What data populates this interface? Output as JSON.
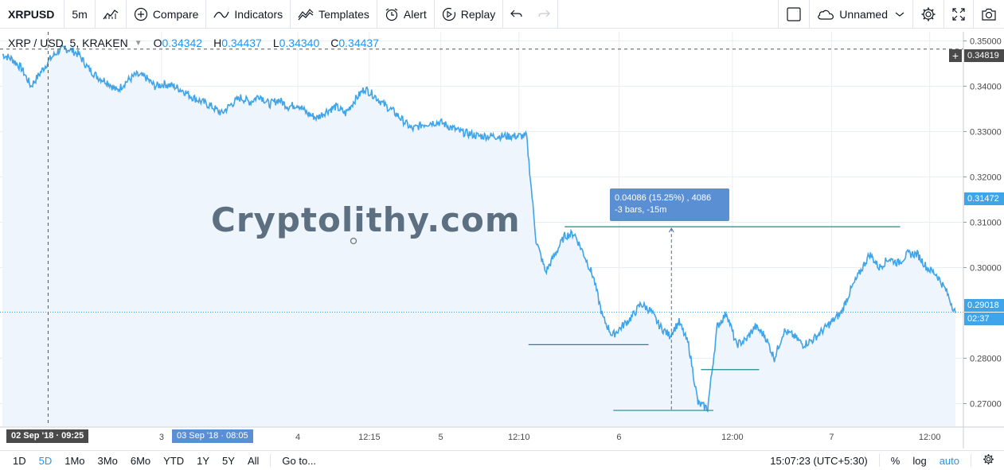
{
  "toolbar": {
    "symbol": "XRPUSD",
    "interval": "5m",
    "compare_label": "Compare",
    "indicators_label": "Indicators",
    "templates_label": "Templates",
    "alert_label": "Alert",
    "replay_label": "Replay",
    "layout_name": "Unnamed",
    "icons": [
      "bar-style-icon",
      "plus-circle-icon",
      "indicators-icon",
      "templates-icon",
      "alarm-clock-icon",
      "replay-icon",
      "undo-icon",
      "redo-icon",
      "square-icon",
      "cloud-icon",
      "chevron-down-icon",
      "gear-icon",
      "fullscreen-icon",
      "camera-icon"
    ]
  },
  "legend": {
    "title": "XRP / USD, 5, KRAKEN",
    "o_label": "O",
    "o_value": "0.34342",
    "h_label": "H",
    "h_value": "0.34437",
    "l_label": "L",
    "l_value": "0.34340",
    "c_label": "C",
    "c_value": "0.34437"
  },
  "watermark": "Cryptolithy.com",
  "measure": {
    "line1": "0.04086 (15.25%) , 4086",
    "line2": "-3 bars, -15m"
  },
  "price_axis": {
    "ticks": [
      "0.35000",
      "0.34000",
      "0.33000",
      "0.32000",
      "0.31000",
      "0.30000",
      "0.28000",
      "0.27000"
    ],
    "crosshair_price": "0.34819",
    "highlight_price": "0.31472",
    "last_price": "0.29018",
    "countdown": "02:37"
  },
  "time_axis": {
    "ticks": [
      "3",
      "4",
      "12:15",
      "5",
      "12:10",
      "6",
      "12:00",
      "7",
      "12:00"
    ],
    "crosshair_time": "02 Sep '18 · 09:25",
    "selected_time": "03 Sep '18 · 08:05"
  },
  "bottom": {
    "ranges": [
      "1D",
      "5D",
      "1Mo",
      "3Mo",
      "6Mo",
      "YTD",
      "1Y",
      "5Y",
      "All"
    ],
    "active_range": "5D",
    "goto_label": "Go to...",
    "clock": "15:07:23 (UTC+5:30)",
    "percent_label": "%",
    "log_label": "log",
    "auto_label": "auto"
  },
  "colors": {
    "line": "#3fa4e8",
    "area": "#eef5fc",
    "grid": "#e9eef3",
    "drawing": "#1f8a8a",
    "measure_bg": "#5a8fd3",
    "label_dark": "#4a4a4a"
  },
  "chart_data": {
    "type": "area",
    "title": "XRP / USD, 5, KRAKEN",
    "y_range": [
      0.265,
      0.352
    ],
    "x_range": [
      0,
      100
    ],
    "series": [
      {
        "x": [
          0,
          1,
          2,
          3,
          4,
          5,
          6,
          7,
          8,
          9,
          10,
          11,
          12,
          13,
          14,
          15,
          16,
          17,
          18,
          19,
          20,
          21,
          22,
          23,
          24,
          25,
          26,
          27,
          28,
          29,
          30,
          31,
          32,
          33,
          34,
          35,
          36,
          37,
          38,
          39,
          40,
          41,
          42,
          43,
          44,
          45,
          46,
          47,
          48,
          49,
          50,
          51,
          52,
          53,
          54,
          55,
          56,
          57,
          58,
          59,
          60,
          61,
          62,
          63,
          64,
          65,
          66,
          67,
          68,
          69,
          70,
          71,
          72,
          73,
          74,
          75,
          76,
          77,
          78,
          79,
          80,
          81,
          82,
          83,
          84,
          85,
          86,
          87,
          88,
          89,
          90,
          91,
          92,
          93,
          94,
          95,
          96,
          97,
          98,
          99,
          100
        ],
        "values": [
          0.347,
          0.346,
          0.344,
          0.34,
          0.343,
          0.346,
          0.348,
          0.3482,
          0.347,
          0.344,
          0.342,
          0.341,
          0.339,
          0.341,
          0.3425,
          0.342,
          0.34,
          0.3405,
          0.34,
          0.339,
          0.3375,
          0.3365,
          0.3355,
          0.334,
          0.336,
          0.3375,
          0.3365,
          0.338,
          0.336,
          0.337,
          0.3355,
          0.336,
          0.334,
          0.333,
          0.3345,
          0.3355,
          0.334,
          0.337,
          0.3395,
          0.338,
          0.336,
          0.3345,
          0.3325,
          0.3305,
          0.3315,
          0.332,
          0.332,
          0.331,
          0.33,
          0.3295,
          0.329,
          0.329,
          0.329,
          0.329,
          0.329,
          0.329,
          0.306,
          0.299,
          0.303,
          0.307,
          0.3075,
          0.303,
          0.298,
          0.289,
          0.285,
          0.287,
          0.289,
          0.292,
          0.2905,
          0.287,
          0.285,
          0.288,
          0.283,
          0.27,
          0.269,
          0.287,
          0.29,
          0.283,
          0.284,
          0.287,
          0.285,
          0.28,
          0.286,
          0.285,
          0.283,
          0.284,
          0.286,
          0.288,
          0.29,
          0.295,
          0.299,
          0.303,
          0.3,
          0.302,
          0.301,
          0.303,
          0.303,
          0.3,
          0.2985,
          0.295,
          0.29
        ]
      }
    ],
    "drawings": {
      "resistance": 0.309,
      "supports": [
        0.283,
        0.2775,
        0.2685
      ]
    }
  }
}
